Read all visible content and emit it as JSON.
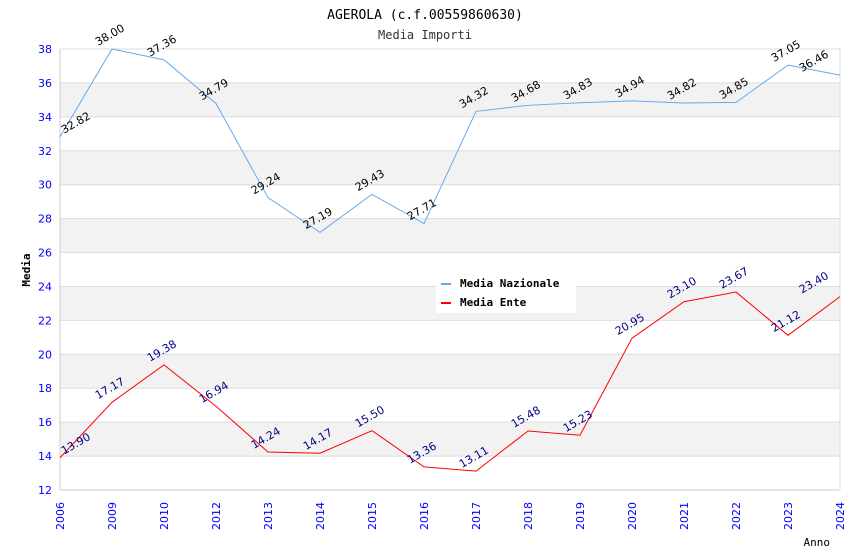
{
  "chart_data": {
    "type": "line",
    "title": "AGEROLA (c.f.00559860630)",
    "subtitle": "Media Importi",
    "xlabel": "Anno",
    "ylabel": "Media",
    "ylim": [
      12,
      38
    ],
    "yticks": [
      12,
      14,
      16,
      18,
      20,
      22,
      24,
      26,
      28,
      30,
      32,
      34,
      36,
      38
    ],
    "categories": [
      "2006",
      "2009",
      "2010",
      "2012",
      "2013",
      "2014",
      "2015",
      "2016",
      "2017",
      "2018",
      "2019",
      "2020",
      "2021",
      "2022",
      "2023",
      "2024"
    ],
    "legend_position": "top-right",
    "grid": true,
    "series": [
      {
        "name": "Media Nazionale",
        "color": "#66aaee",
        "label_color": "#000000",
        "values": [
          32.82,
          38.0,
          37.36,
          34.79,
          29.24,
          27.19,
          29.43,
          27.71,
          34.32,
          34.68,
          34.83,
          34.94,
          34.82,
          34.85,
          37.05,
          36.46
        ]
      },
      {
        "name": "Media Ente",
        "color": "#ff0000",
        "label_color": "#000080",
        "values": [
          13.9,
          17.17,
          19.38,
          16.94,
          14.24,
          14.17,
          15.5,
          13.36,
          13.11,
          15.48,
          15.23,
          20.95,
          23.1,
          23.67,
          21.12,
          23.4
        ]
      }
    ]
  }
}
